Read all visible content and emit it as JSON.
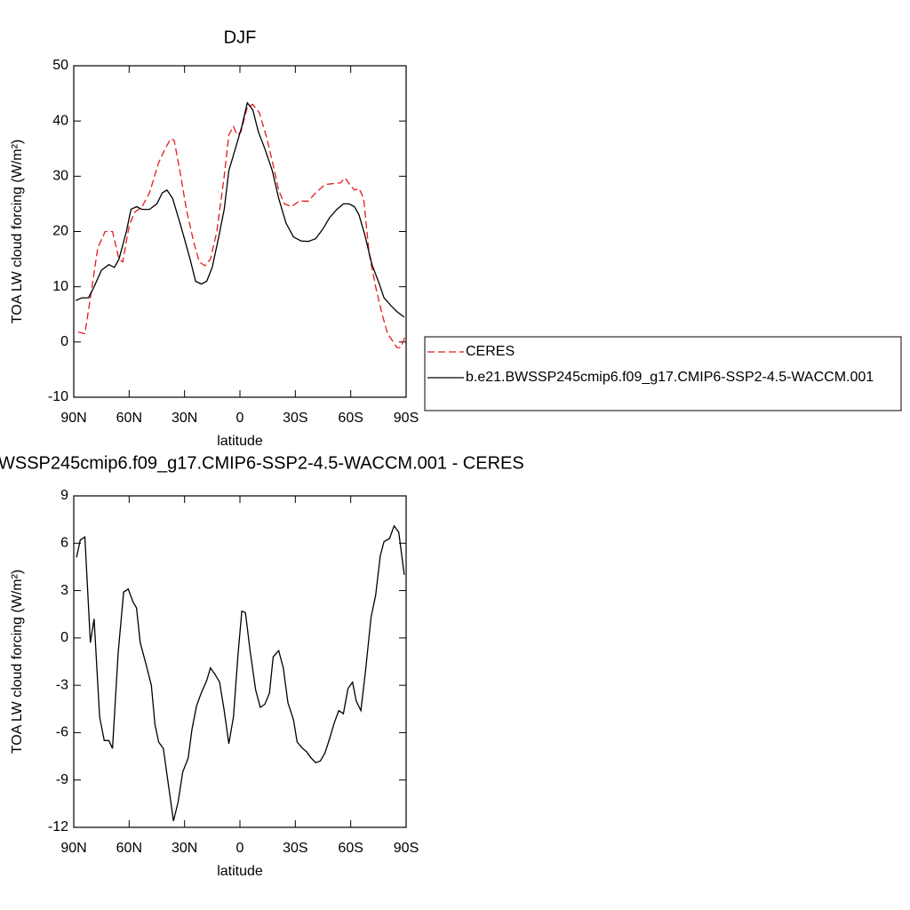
{
  "chart_data": [
    {
      "type": "line",
      "title": "DJF",
      "xlabel": "latitude",
      "ylabel": "TOA LW cloud forcing (W/m²)",
      "xlim": [
        90,
        -90
      ],
      "xticks": [
        {
          "value": 90,
          "label": "90N"
        },
        {
          "value": 60,
          "label": "60N"
        },
        {
          "value": 30,
          "label": "30N"
        },
        0,
        {
          "value": -30,
          "label": "30S"
        },
        {
          "value": -60,
          "label": "60S"
        },
        {
          "value": -90,
          "label": "90S"
        }
      ],
      "ylim": [
        -10,
        50
      ],
      "yticks": [
        -10,
        0,
        10,
        20,
        30,
        40,
        50
      ],
      "legend": "right",
      "series": [
        {
          "name": "CERES",
          "color": "#e41a1c",
          "dashed": true,
          "x": [
            87.6,
            84,
            81,
            77,
            73,
            69,
            65.5,
            63.5,
            60,
            57,
            53,
            49,
            44,
            40.5,
            37.5,
            35.6,
            32,
            29,
            25,
            22,
            19,
            16,
            12.5,
            8.5,
            6,
            3.5,
            1.5,
            -0.5,
            -4,
            -7,
            -10.5,
            -14.5,
            -18,
            -21,
            -24,
            -28,
            -32,
            -37,
            -41,
            -46,
            -51,
            -54.5,
            -57,
            -59.5,
            -62,
            -64.5,
            -67,
            -70,
            -73.5,
            -77,
            -80,
            -83,
            -85,
            -87,
            -89.5
          ],
          "values": [
            1.8,
            1.5,
            8,
            17,
            20,
            20,
            15,
            14.5,
            21,
            23.5,
            24.5,
            27,
            32.5,
            35,
            36.8,
            36.5,
            30,
            24,
            18,
            14.5,
            13.8,
            15,
            20,
            30,
            37.5,
            39,
            37.5,
            38,
            42.5,
            43,
            41.5,
            37,
            32,
            27.5,
            25,
            24.5,
            25.5,
            25.5,
            27,
            28.5,
            28.7,
            28.8,
            29.7,
            28.5,
            27.5,
            27.8,
            26,
            16,
            10,
            5,
            1.5,
            0,
            -1,
            -1,
            1
          ]
        },
        {
          "name": "b.e21.BWSSP245cmip6.f09_g17.CMIP6-SSP2-4.5-WACCM.001",
          "color": "#000000",
          "dashed": false,
          "x": [
            89,
            85.5,
            82,
            79,
            75,
            71,
            68,
            65.5,
            61.5,
            59,
            56,
            53,
            49,
            45,
            42,
            39.5,
            36.5,
            32,
            27,
            24,
            21,
            18,
            15,
            11.5,
            8.5,
            6,
            2,
            -1,
            -4,
            -7,
            -10,
            -13.5,
            -17.5,
            -21,
            -25,
            -29,
            -33,
            -37,
            -41,
            -45,
            -48.5,
            -52.5,
            -56,
            -59,
            -62,
            -64.5,
            -67.5,
            -71.5,
            -75.5,
            -78,
            -82,
            -85,
            -89
          ],
          "values": [
            7.5,
            8,
            8,
            10,
            13,
            14,
            13.5,
            15,
            20,
            24,
            24.5,
            24,
            24,
            25,
            27,
            27.5,
            26,
            21,
            15,
            11,
            10.5,
            11,
            13.5,
            19,
            24,
            31,
            35.5,
            39,
            43.3,
            42,
            38,
            35,
            31,
            26,
            21.5,
            19,
            18.3,
            18.2,
            18.7,
            20.5,
            22.5,
            24,
            25,
            25,
            24.5,
            23,
            19.5,
            14,
            10.5,
            8,
            6.5,
            5.5,
            4.5
          ]
        }
      ]
    },
    {
      "type": "line",
      "title": "WSSP245cmip6.f09_g17.CMIP6-SSP2-4.5-WACCM.001 - CERES",
      "xlabel": "latitude",
      "ylabel": "TOA LW cloud forcing (W/m²)",
      "xlim": [
        90,
        -90
      ],
      "xticks": [
        {
          "value": 90,
          "label": "90N"
        },
        {
          "value": 60,
          "label": "60N"
        },
        {
          "value": 30,
          "label": "30N"
        },
        0,
        {
          "value": -30,
          "label": "30S"
        },
        {
          "value": -60,
          "label": "60S"
        },
        {
          "value": -90,
          "label": "90S"
        }
      ],
      "ylim": [
        -12,
        9
      ],
      "yticks": [
        -12,
        -9,
        -6,
        -3,
        0,
        3,
        6,
        9
      ],
      "series": [
        {
          "color": "#000000",
          "dashed": false,
          "x": [
            88.5,
            86.5,
            84,
            81,
            79,
            76,
            73.5,
            71,
            69,
            66,
            63,
            60.5,
            58,
            56,
            54,
            51,
            48,
            46,
            44,
            41.5,
            38.5,
            36,
            33.5,
            31,
            28,
            26,
            23.5,
            21,
            18,
            16,
            13.5,
            11,
            8.5,
            6,
            3.5,
            1,
            -1,
            -3,
            -5.5,
            -8.5,
            -11,
            -13.5,
            -16,
            -18,
            -21,
            -23.5,
            -26,
            -29,
            -31,
            -34,
            -36,
            -38.5,
            -41,
            -43.5,
            -46,
            -48.5,
            -51,
            -53.5,
            -56,
            -58.5,
            -61,
            -63,
            -65.5,
            -68,
            -71,
            -73.5,
            -76,
            -78,
            -81,
            -83.5,
            -86,
            -89
          ],
          "values": [
            5.1,
            6.2,
            6.4,
            -0.3,
            1.2,
            -5,
            -6.5,
            -6.5,
            -7,
            -1,
            2.9,
            3.1,
            2.3,
            1.9,
            -0.3,
            -1.6,
            -3,
            -5.5,
            -6.6,
            -7,
            -9.5,
            -11.6,
            -10.4,
            -8.5,
            -7.6,
            -5.8,
            -4.3,
            -3.5,
            -2.7,
            -1.9,
            -2.3,
            -2.8,
            -4.6,
            -6.7,
            -5,
            -1,
            1.7,
            1.6,
            -0.8,
            -3.3,
            -4.4,
            -4.2,
            -3.5,
            -1.2,
            -0.8,
            -1.9,
            -4.1,
            -5.2,
            -6.6,
            -7,
            -7.2,
            -7.6,
            -7.9,
            -7.8,
            -7.3,
            -6.4,
            -5.4,
            -4.6,
            -4.8,
            -3.2,
            -2.8,
            -4,
            -4.6,
            -2.1,
            1.3,
            2.7,
            5.2,
            6.1,
            6.3,
            7.1,
            6.7,
            4
          ]
        }
      ]
    }
  ]
}
